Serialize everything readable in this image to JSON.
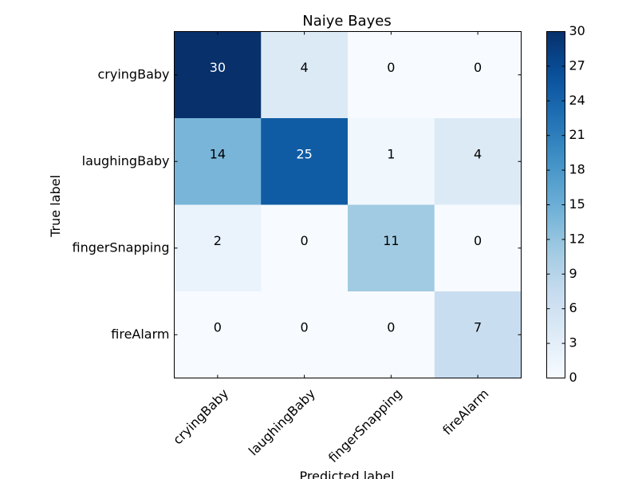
{
  "chart_data": {
    "type": "heatmap",
    "title": "Naiye Bayes",
    "xlabel": "Predicted label",
    "ylabel": "True label",
    "x_categories": [
      "cryingBaby",
      "laughingBaby",
      "fingerSnapping",
      "fireAlarm"
    ],
    "y_categories": [
      "cryingBaby",
      "laughingBaby",
      "fingerSnapping",
      "fireAlarm"
    ],
    "matrix": [
      [
        30,
        4,
        0,
        0
      ],
      [
        14,
        25,
        1,
        4
      ],
      [
        2,
        0,
        11,
        0
      ],
      [
        0,
        0,
        0,
        7
      ]
    ],
    "value_range": [
      0,
      30
    ],
    "colormap": "Blues",
    "colorbar_ticks": [
      0,
      3,
      6,
      9,
      12,
      15,
      18,
      21,
      24,
      27,
      30
    ],
    "colorbar_tick_labels": [
      "0",
      "3",
      "6",
      "9",
      "12",
      "15",
      "18",
      "21",
      "24",
      "27",
      "30"
    ],
    "text_color_dark": "#000000",
    "text_color_light": "#ffffff"
  }
}
